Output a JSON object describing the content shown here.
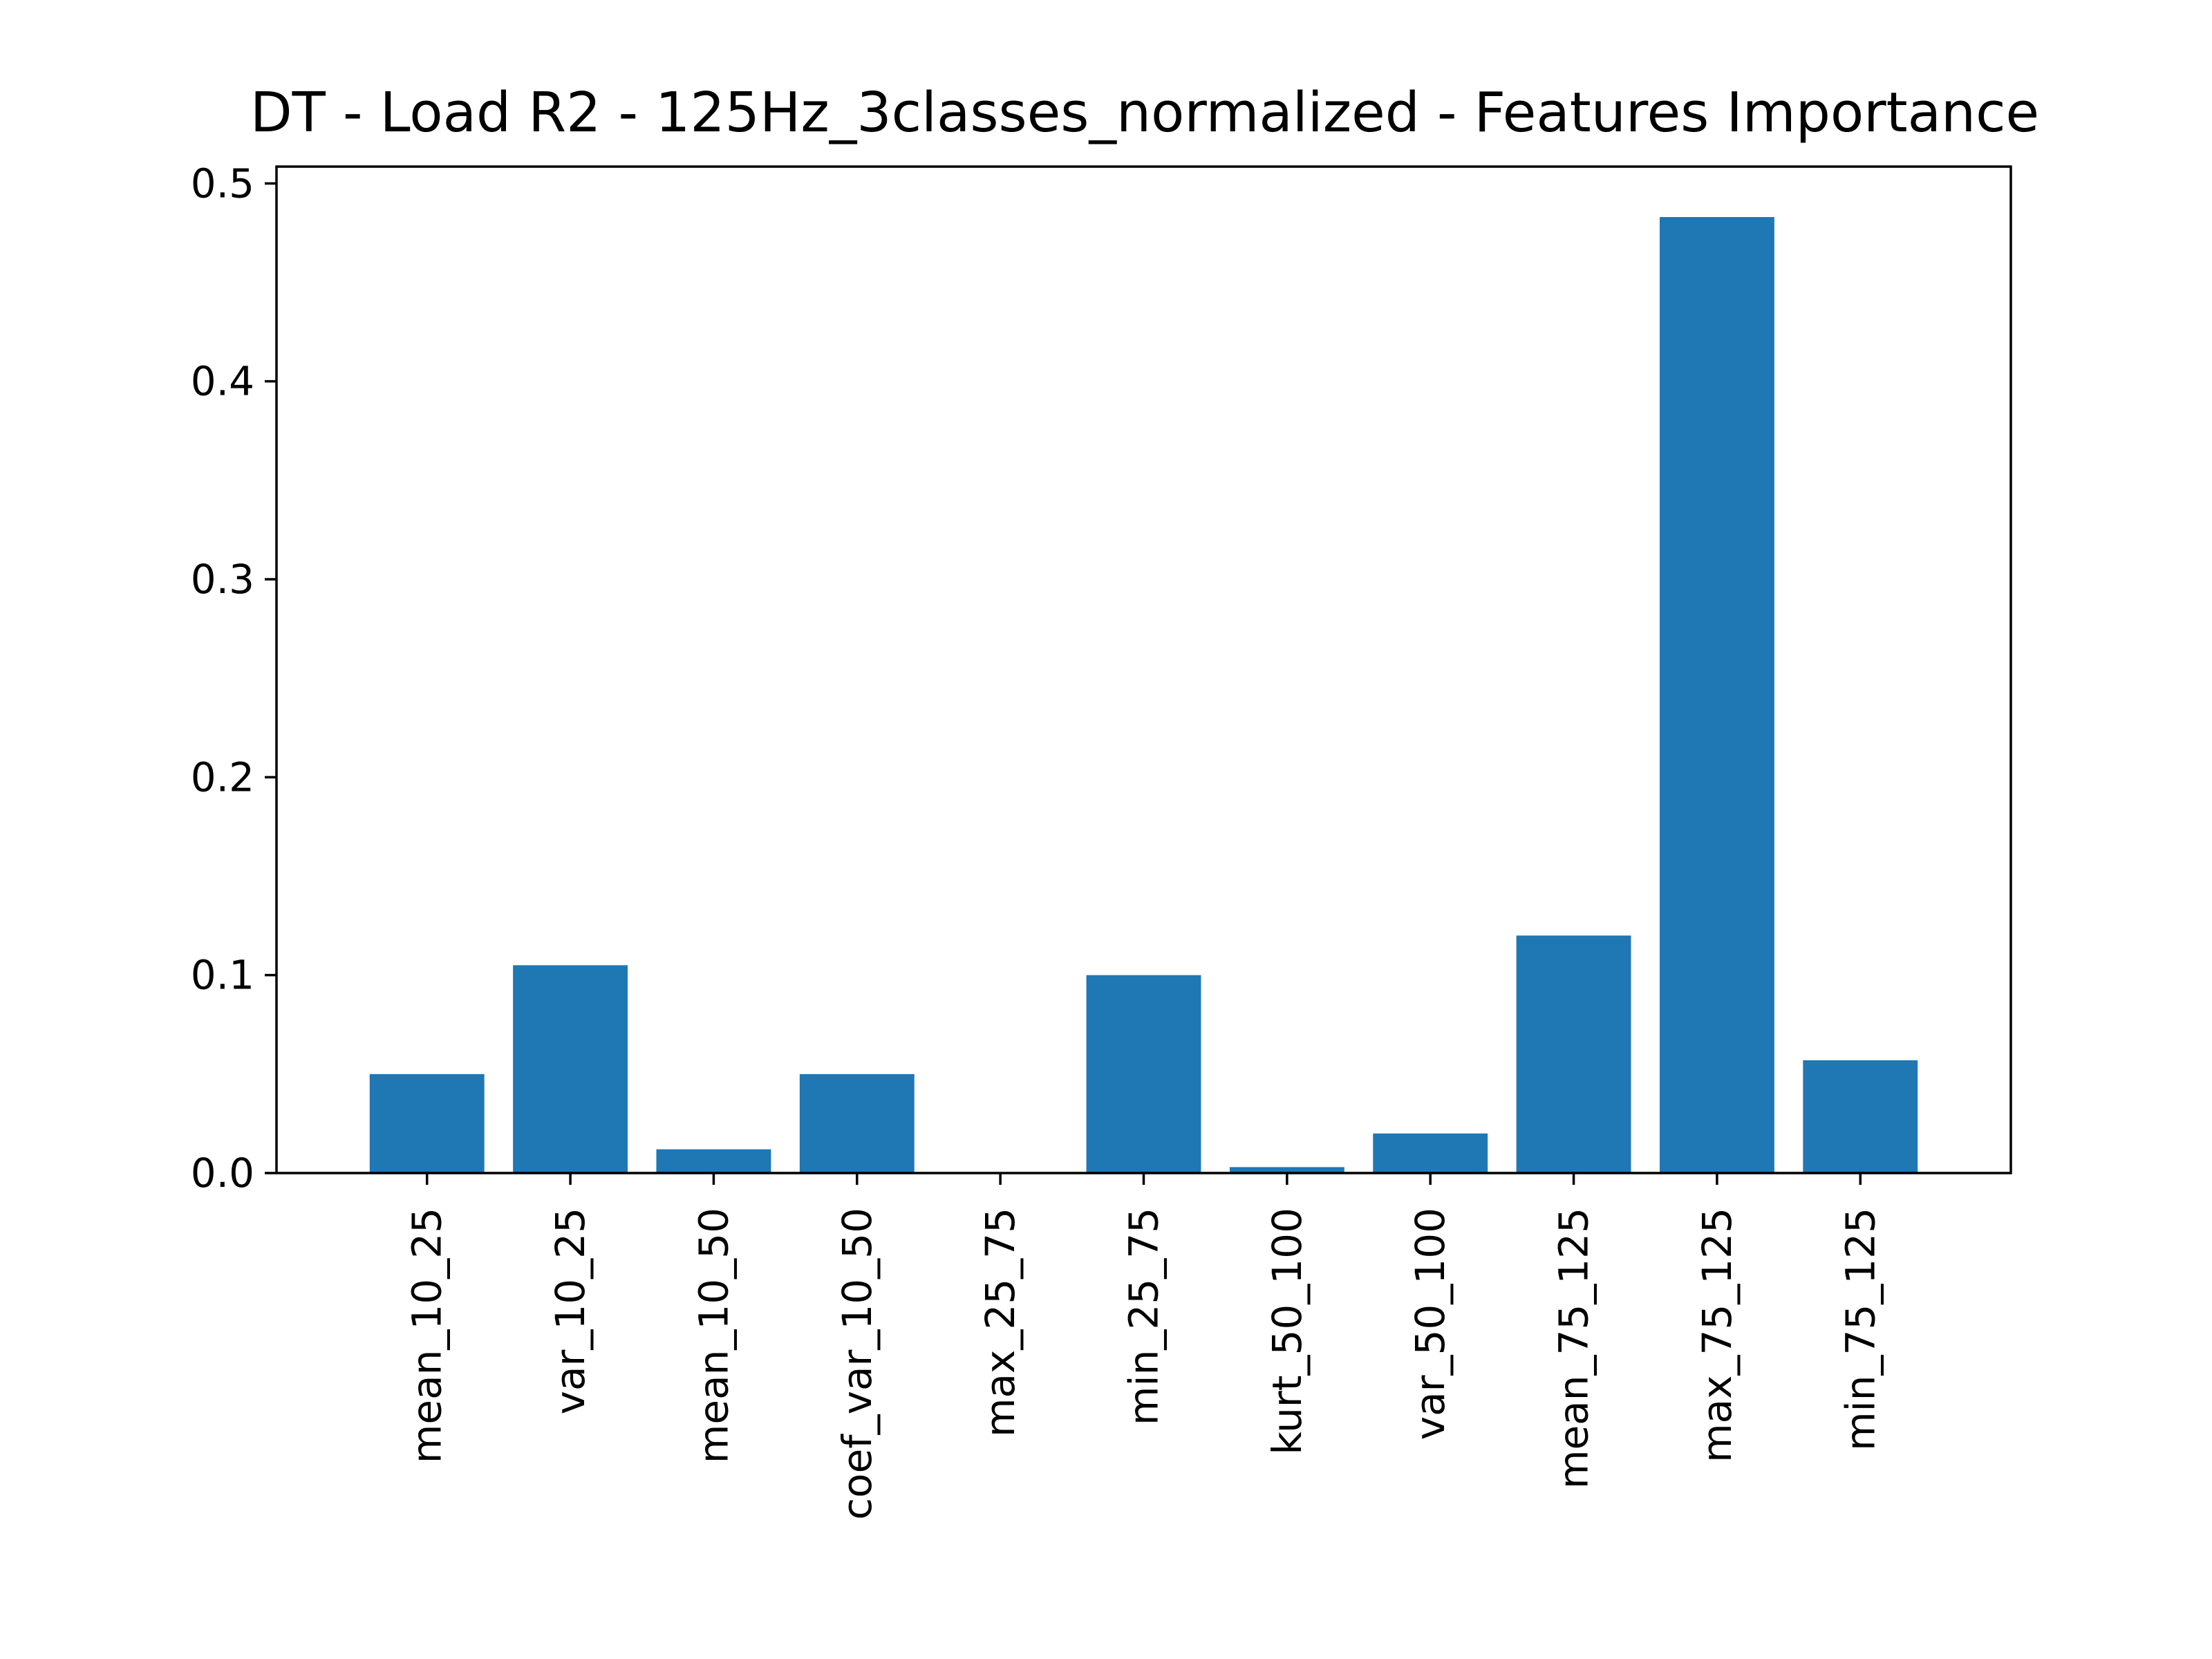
{
  "chart_data": {
    "type": "bar",
    "title": "DT - Load R2 - 125Hz_3classes_normalized - Features Importance",
    "xlabel": "",
    "ylabel": "",
    "categories": [
      "mean_10_25",
      "var_10_25",
      "mean_10_50",
      "coef_var_10_50",
      "max_25_75",
      "min_25_75",
      "kurt_50_100",
      "var_50_100",
      "mean_75_125",
      "max_75_125",
      "min_75_125"
    ],
    "values": [
      0.05,
      0.105,
      0.012,
      0.05,
      0.0,
      0.1,
      0.003,
      0.02,
      0.12,
      0.483,
      0.057
    ],
    "ylim": [
      0,
      0.5085
    ],
    "yticks": [
      0.0,
      0.1,
      0.2,
      0.3,
      0.4,
      0.5
    ],
    "ytick_labels": [
      "0.0",
      "0.1",
      "0.2",
      "0.3",
      "0.4",
      "0.5"
    ],
    "grid": false,
    "legend": "none",
    "colors": {
      "bar": "#1f77b4",
      "axes": "#000000",
      "text": "#000000",
      "background": "#ffffff"
    }
  }
}
